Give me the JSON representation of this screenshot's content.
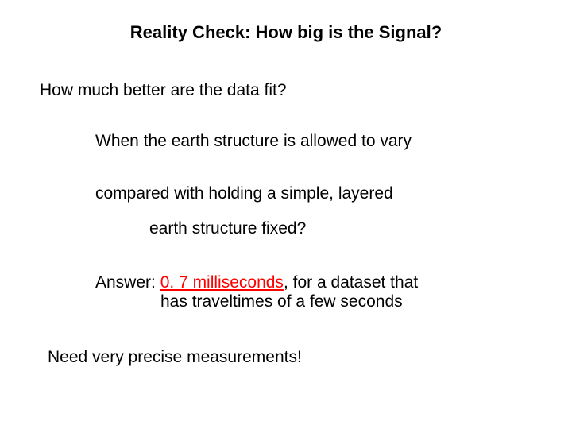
{
  "title": "Reality Check:  How big is the Signal?",
  "question": "How much better are the data fit?",
  "body": {
    "line1": "When the earth structure is allowed to vary",
    "line2": "compared with holding a simple, layered",
    "line3": "earth structure fixed?"
  },
  "answer": {
    "prefix": "Answer:  ",
    "emphasis": "0. 7 milliseconds",
    "suffix1": ", for a dataset that",
    "line2": "has traveltimes of a few seconds"
  },
  "conclusion": "Need very precise measurements!",
  "styling": {
    "background_color": "#ffffff",
    "text_color": "#000000",
    "emphasis_color": "#ff0000",
    "title_fontsize": 22,
    "body_fontsize": 21,
    "font_family": "Arial, Helvetica, sans-serif",
    "title_weight": "bold"
  }
}
